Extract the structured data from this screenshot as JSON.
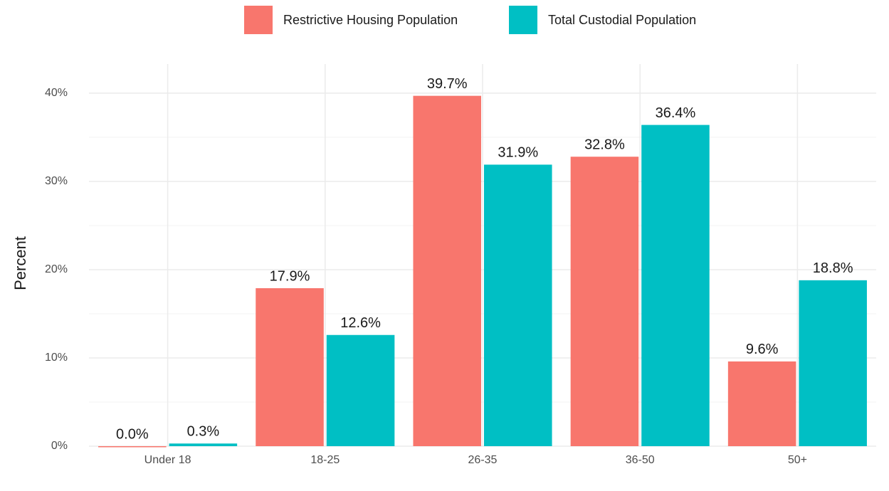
{
  "chart_data": {
    "type": "bar",
    "y_label": "Percent",
    "categories": [
      "Under 18",
      "18-25",
      "26-35",
      "36-50",
      "50+"
    ],
    "series": [
      {
        "name": "Restrictive Housing Population",
        "color": "#f8766d",
        "values": [
          0.0,
          17.9,
          39.7,
          32.8,
          9.6
        ],
        "value_labels": [
          "0.0%",
          "17.9%",
          "39.7%",
          "32.8%",
          "9.6%"
        ]
      },
      {
        "name": "Total Custodial Population",
        "color": "#00bfc4",
        "values": [
          0.3,
          12.6,
          31.9,
          36.4,
          18.8
        ],
        "value_labels": [
          "0.3%",
          "12.6%",
          "31.9%",
          "36.4%",
          "18.8%"
        ]
      }
    ],
    "ylim": [
      0,
      43.3
    ],
    "yticks": [
      {
        "value": 0,
        "label": "0%"
      },
      {
        "value": 10,
        "label": "10%"
      },
      {
        "value": 20,
        "label": "20%"
      },
      {
        "value": 30,
        "label": "30%"
      },
      {
        "value": 40,
        "label": "40%"
      }
    ],
    "grid": true,
    "legend": "top"
  }
}
